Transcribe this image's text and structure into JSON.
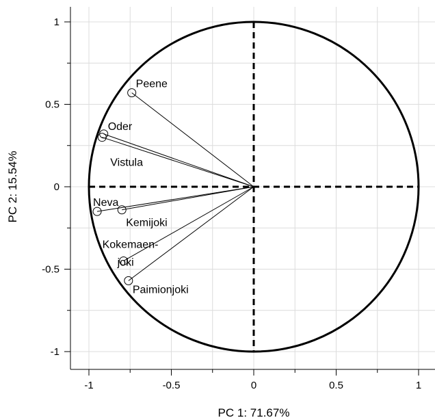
{
  "chart_data": {
    "type": "scatter",
    "title": "",
    "xlabel": "PC 1: 71.67%",
    "ylabel": "PC 2: 15.54%",
    "xlim": [
      -1.1,
      1.1
    ],
    "ylim": [
      -1.1,
      1.1
    ],
    "xticks": [
      -1,
      -0.5,
      0,
      0.5,
      1
    ],
    "xtick_labels": [
      "-1",
      "-0.5",
      "0",
      "0.5",
      "1"
    ],
    "yticks": [
      -1,
      -0.5,
      0,
      0.5,
      1
    ],
    "ytick_labels": [
      "-1",
      "-0.5",
      "0",
      "0.5",
      "1"
    ],
    "grid": true,
    "unit_circle": true,
    "points": [
      {
        "label": "Peene",
        "x": -0.74,
        "y": 0.57
      },
      {
        "label": "Oder",
        "x": -0.91,
        "y": 0.32
      },
      {
        "label": "Vistula",
        "x": -0.92,
        "y": 0.3
      },
      {
        "label": "Neva",
        "x": -0.95,
        "y": -0.15
      },
      {
        "label": "Kemijoki",
        "x": -0.8,
        "y": -0.14
      },
      {
        "label": "Kokemaen-\njoki",
        "x": -0.79,
        "y": -0.45
      },
      {
        "label": "Paimionjoki",
        "x": -0.76,
        "y": -0.57
      }
    ]
  }
}
